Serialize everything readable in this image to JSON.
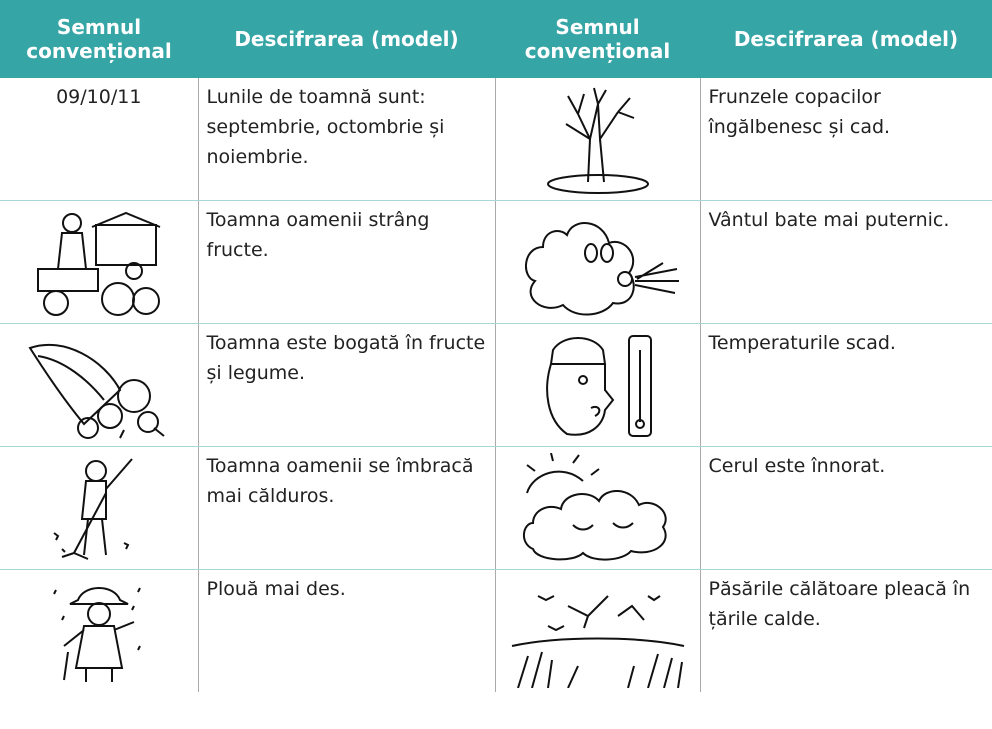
{
  "table": {
    "header": [
      "Semnul convențional",
      "Descifrarea (model)",
      "Semnul convențional",
      "Descifrarea (model)"
    ],
    "rows": [
      {
        "sign": "09/10/11",
        "left_text": "Lunile de toamnă sunt: septembrie, octombrie și noiembrie.",
        "right_text": "Frunzele copacilor îngălbenesc și cad."
      },
      {
        "left_text": "Toamna oamenii strâng fructe.",
        "right_text": "Vântul bate mai puternic."
      },
      {
        "left_text": "Toamna este bogată în fructe și legume.",
        "right_text": "Temperaturile scad."
      },
      {
        "left_text": "Toamna oamenii se îmbracă mai călduros.",
        "right_text": "Cerul este înnorat."
      },
      {
        "left_text": "Plouă mai des.",
        "right_text": "Păsările călătoare pleacă în țările calde."
      }
    ]
  }
}
